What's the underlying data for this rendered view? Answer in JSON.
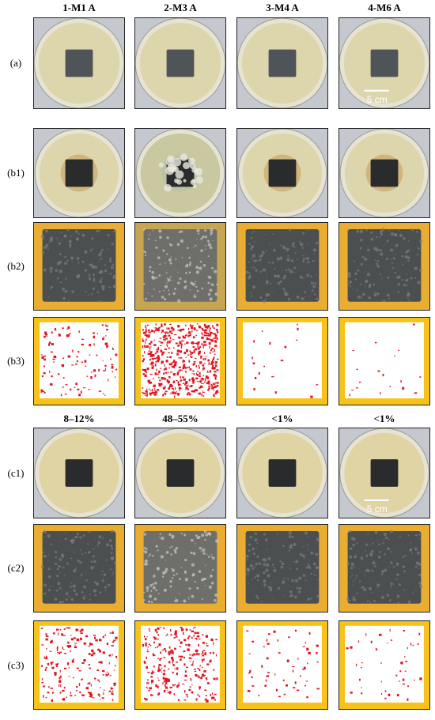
{
  "columns": [
    "1-M1 A",
    "2-M3 A",
    "3-M4 A",
    "4-M6 A"
  ],
  "rows": [
    {
      "label": "(a)"
    },
    {
      "label": "(b1)"
    },
    {
      "label": "(b2)"
    },
    {
      "label": "(b3)"
    },
    {
      "label": "(c1)"
    },
    {
      "label": "(c2)"
    },
    {
      "label": "(c3)"
    }
  ],
  "percentages": [
    "8–12%",
    "48–55%",
    "<1%",
    "<1%"
  ],
  "scale_bars": [
    "5 cm",
    "5 cm"
  ]
}
